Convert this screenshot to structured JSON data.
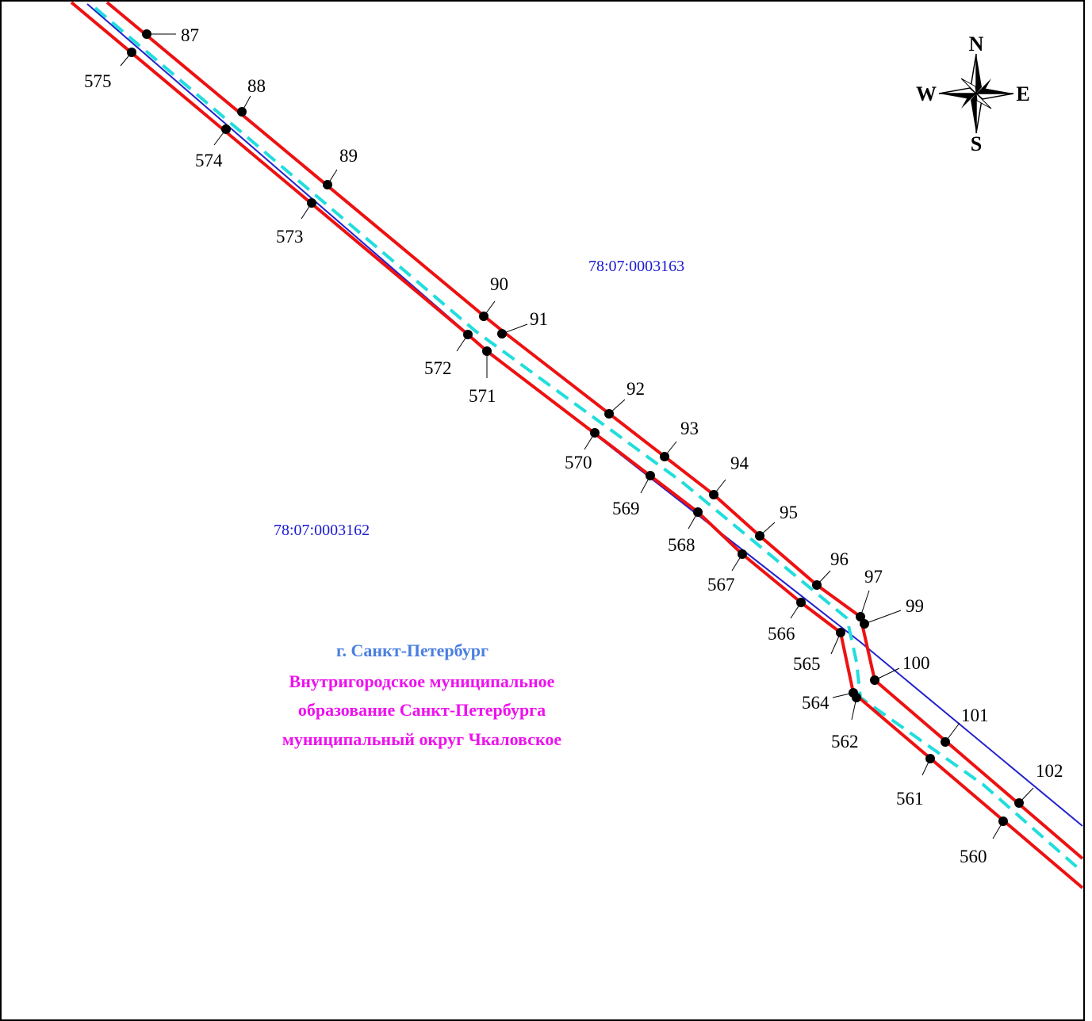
{
  "colors": {
    "boundary": "#ee1111",
    "centerline": "#22dddd",
    "cadastral_line": "#2222cc",
    "cadastral_text": "#1a1ad0",
    "city_text": "#4a7fe0",
    "municipality_text": "#ee11ee"
  },
  "cadastral_labels": [
    "78:07:0003163",
    "78:07:0003162"
  ],
  "admin": {
    "city": "г. Санкт-Петербург",
    "municipality_lines": [
      "Внутригородское муниципальное",
      "образование Санкт-Петербурга",
      "муниципальный округ Чкаловское"
    ]
  },
  "compass": {
    "n": "N",
    "s": "S",
    "e": "E",
    "w": "W",
    "icon": "compass-rose-icon"
  },
  "point_labels": {
    "north": [
      "87",
      "88",
      "89",
      "90",
      "91",
      "92",
      "93",
      "94",
      "95",
      "96",
      "97",
      "99",
      "100",
      "101",
      "102"
    ],
    "south": [
      "575",
      "574",
      "573",
      "572",
      "571",
      "570",
      "569",
      "568",
      "567",
      "566",
      "565",
      "564",
      "562",
      "561",
      "560"
    ]
  }
}
